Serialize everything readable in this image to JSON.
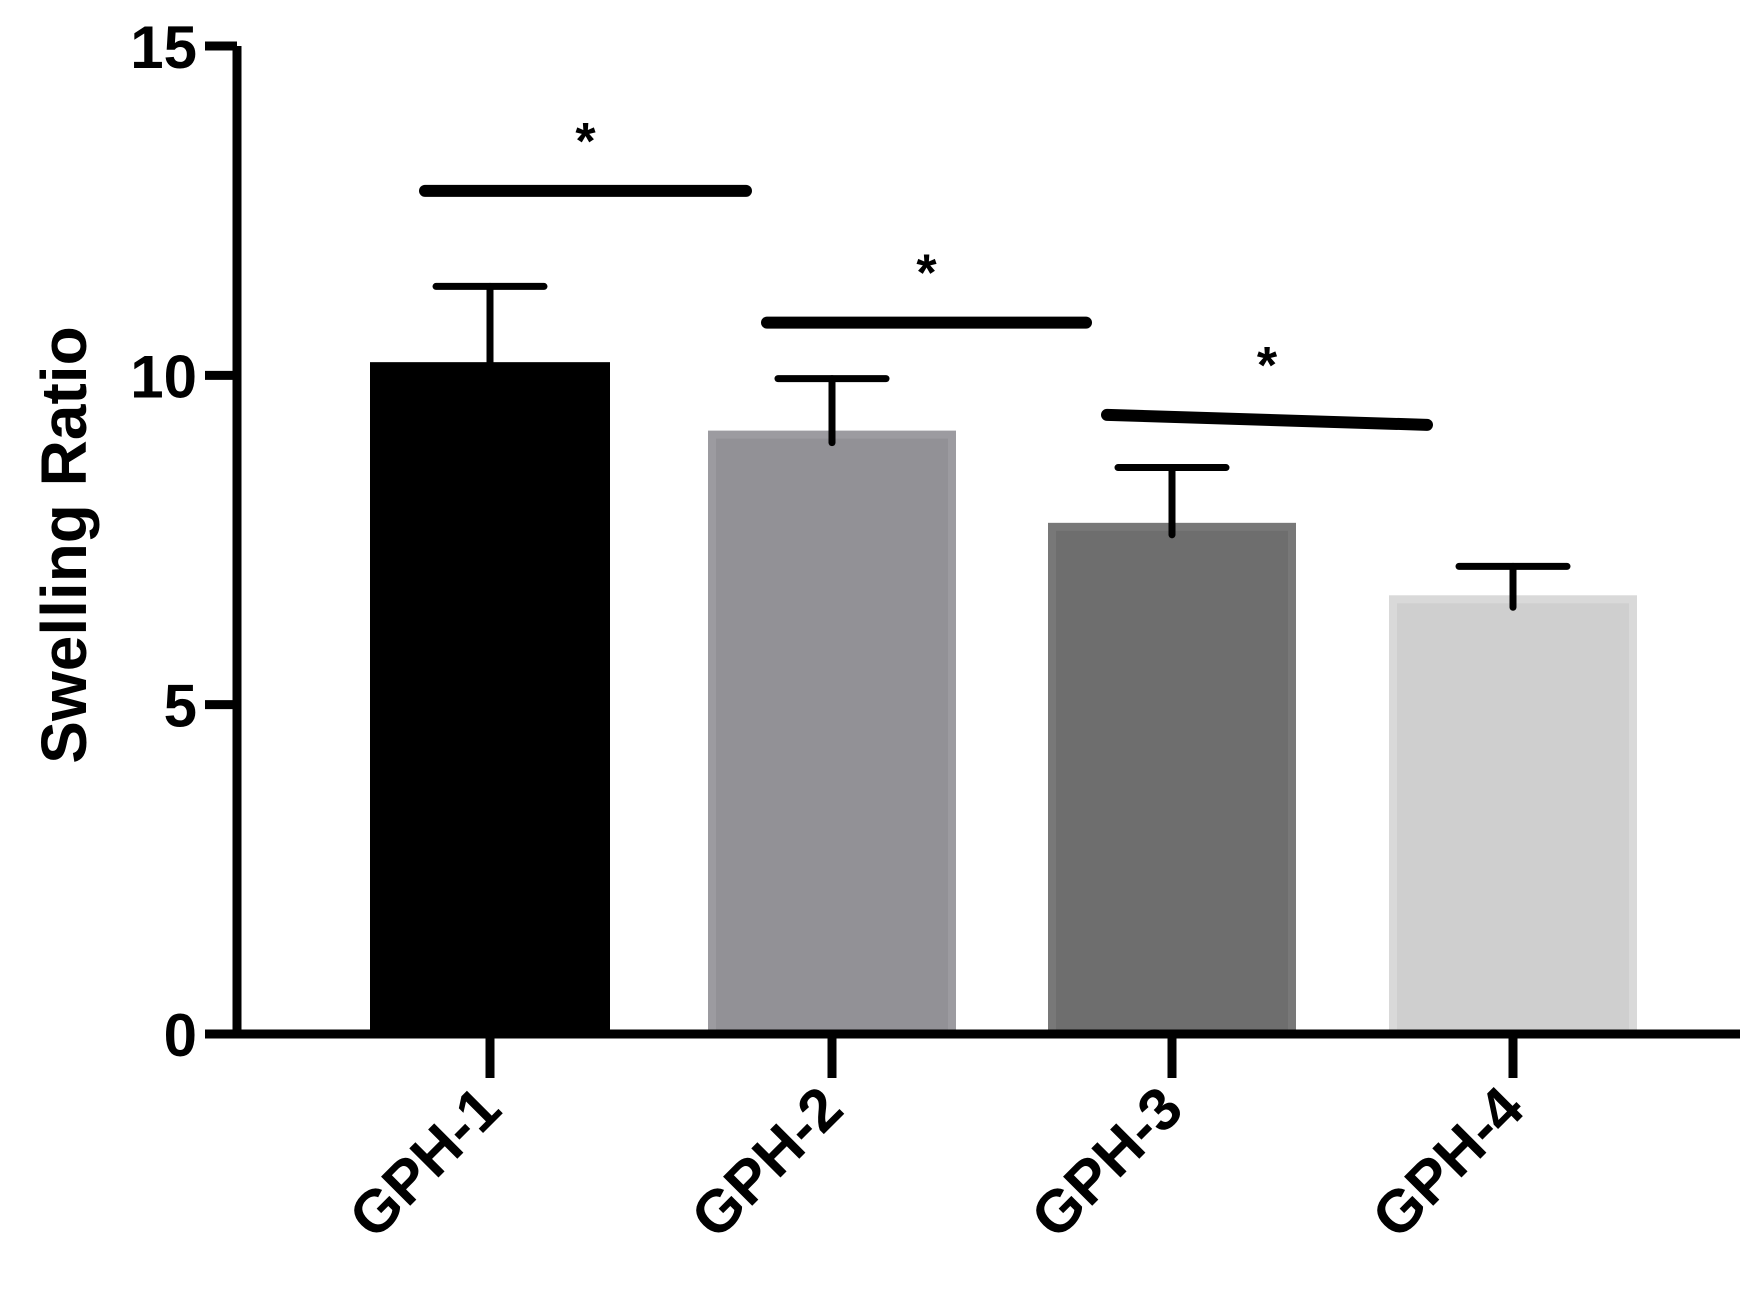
{
  "chart_data": {
    "type": "bar",
    "ylabel": "Swelling Ratio",
    "xlabel": "",
    "title": "",
    "categories": [
      "GPH-1",
      "GPH-2",
      "GPH-3",
      "GPH-4"
    ],
    "values": [
      10.2,
      9.1,
      7.7,
      6.6
    ],
    "errors": [
      1.15,
      0.85,
      0.9,
      0.5
    ],
    "colors": [
      "#000000",
      "#929196",
      "#6e6e6e",
      "#cfcfcf"
    ],
    "ylim": [
      0,
      15
    ],
    "yticks": [
      0,
      5,
      10,
      15
    ],
    "grid": false,
    "significance": [
      {
        "from": "GPH-1",
        "to": "GPH-2",
        "label": "*",
        "y": 12.8
      },
      {
        "from": "GPH-2",
        "to": "GPH-3",
        "label": "*",
        "y": 10.8
      },
      {
        "from": "GPH-3",
        "to": "GPH-4",
        "label": "*",
        "y": 9.4
      }
    ]
  }
}
